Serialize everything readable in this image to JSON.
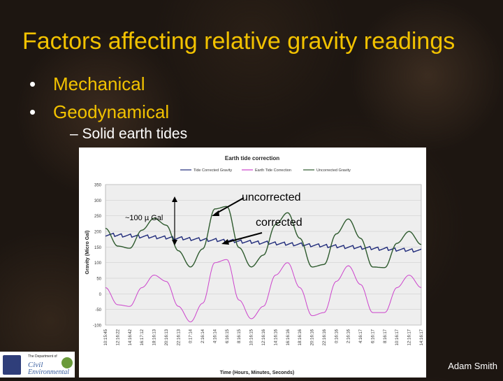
{
  "slide": {
    "title": "Factors affecting relative gravity readings",
    "bullets": [
      "Mechanical",
      "Geodynamical"
    ],
    "sub_bullet": "– Solid earth tides",
    "annotations": {
      "uncorrected": "uncorrected",
      "corrected": "corrected",
      "amplitude": "~100 µ Gal"
    },
    "credit": "Adam Smith",
    "logo": {
      "line1": "The Department of",
      "line2": "Civil",
      "line3": "Environmental"
    }
  },
  "chart_data": {
    "type": "line",
    "title": "Earth tide correction",
    "xlabel": "Time (Hours, Minutes, Seconds)",
    "ylabel": "Gravity (Micro Gal)",
    "ylim": [
      -100,
      350
    ],
    "yticks": [
      350,
      300,
      250,
      200,
      150,
      100,
      50,
      0,
      -50,
      -100
    ],
    "xticks": [
      "10:15:45",
      "12:16:22",
      "14:16:42",
      "16:17:12",
      "18:16:13",
      "20:16:13",
      "22:16:13",
      "0:17:14",
      "2:16:14",
      "4:16:14",
      "6:16:15",
      "8:16:15",
      "10:16:15",
      "12:16:16",
      "14:16:16",
      "16:16:16",
      "18:16:16",
      "20:16:16",
      "22:16:16",
      "0:16:16",
      "2:16:16",
      "4:16:17",
      "6:16:17",
      "8:16:17",
      "10:16:17",
      "12:16:17",
      "14:16:17"
    ],
    "legend_position": "top",
    "series": [
      {
        "name": "Tide Corrected Gravity",
        "color": "#1f2a7a",
        "x": [
          0,
          1,
          2,
          3,
          4,
          5,
          6,
          7,
          8,
          9,
          10,
          11,
          12,
          13,
          14,
          15,
          16,
          17,
          18,
          19,
          20,
          21,
          22,
          23,
          24,
          25,
          26
        ],
        "values": [
          190,
          188,
          186,
          184,
          182,
          180,
          178,
          176,
          174,
          172,
          170,
          168,
          166,
          164,
          162,
          160,
          158,
          156,
          154,
          152,
          150,
          148,
          146,
          144,
          142,
          140,
          138
        ]
      },
      {
        "name": "Earth Tide Correction",
        "color": "#cc44cc",
        "x": [
          0,
          1,
          2,
          3,
          4,
          5,
          6,
          7,
          8,
          9,
          10,
          11,
          12,
          13,
          14,
          15,
          16,
          17,
          18,
          19,
          20,
          21,
          22,
          23,
          24,
          25,
          26
        ],
        "values": [
          20,
          -35,
          -40,
          20,
          60,
          40,
          -40,
          -90,
          -30,
          100,
          110,
          -20,
          -80,
          -40,
          60,
          100,
          20,
          -70,
          -60,
          40,
          90,
          30,
          -60,
          -60,
          20,
          60,
          20
        ]
      },
      {
        "name": "Uncorrected Gravity",
        "color": "#2e5a2e",
        "x": [
          0,
          1,
          2,
          3,
          4,
          5,
          6,
          7,
          8,
          9,
          10,
          11,
          12,
          13,
          14,
          15,
          16,
          17,
          18,
          19,
          20,
          21,
          22,
          23,
          24,
          25,
          26
        ],
        "values": [
          210,
          153,
          146,
          204,
          242,
          220,
          138,
          86,
          144,
          272,
          280,
          148,
          86,
          124,
          222,
          260,
          178,
          86,
          94,
          192,
          240,
          178,
          86,
          84,
          162,
          200,
          158
        ]
      }
    ]
  }
}
